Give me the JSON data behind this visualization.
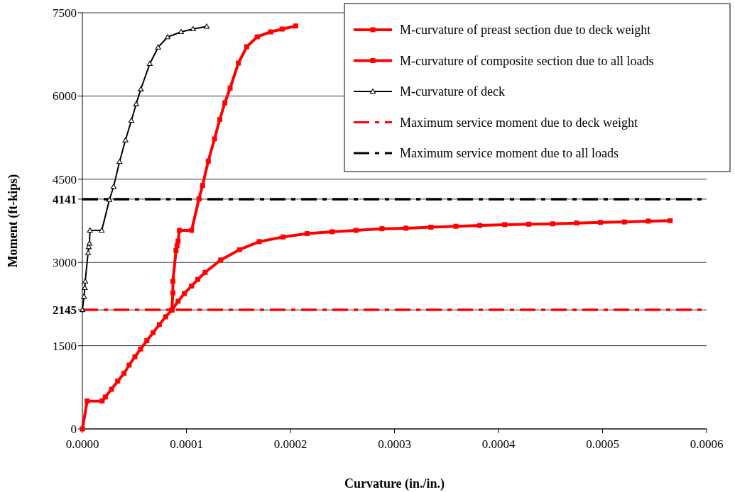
{
  "chart_data": {
    "type": "line",
    "xlabel": "Curvature (in./in.)",
    "ylabel": "Moment (ft-kips)",
    "xlim": [
      0,
      0.0006
    ],
    "ylim": [
      0,
      7500
    ],
    "xticks": [
      {
        "value": 0,
        "label": "0.0000"
      },
      {
        "value": 0.0001,
        "label": "0.0001"
      },
      {
        "value": 0.0002,
        "label": "0.0002"
      },
      {
        "value": 0.0003,
        "label": "0.0003"
      },
      {
        "value": 0.0004,
        "label": "0.0004"
      },
      {
        "value": 0.0005,
        "label": "0.0005"
      },
      {
        "value": 0.0006,
        "label": "0.0006"
      }
    ],
    "yticks": [
      0,
      1500,
      2145,
      3000,
      4141,
      4500,
      6000,
      7500
    ],
    "grid": "y",
    "legend": "top right",
    "series": [
      {
        "name": "M-curvature of preast section due to deck weight",
        "color": "#ff0000",
        "marker": "square",
        "x": [
          0,
          4.6e-06,
          1.9e-05,
          2.2e-05,
          2.8e-05,
          3.4e-05,
          4e-05,
          4.5e-05,
          5.05e-05,
          5.6e-05,
          6.2e-05,
          6.8e-05,
          7.4e-05,
          8e-05,
          8.6e-05,
          9.2e-05,
          9.8e-05,
          0.000105,
          0.000111,
          0.000118,
          0.000133,
          0.000151,
          0.00017,
          0.000193,
          0.000216,
          0.00024,
          0.000263,
          0.000288,
          0.000311,
          0.000335,
          0.000359,
          0.000382,
          0.000406,
          0.000429,
          0.000452,
          0.000475,
          0.000498,
          0.000521,
          0.000544,
          0.000565
        ],
        "values": [
          0,
          502,
          502,
          575,
          715,
          860,
          1000,
          1150,
          1300,
          1440,
          1590,
          1735,
          1880,
          2020,
          2140,
          2300,
          2440,
          2575,
          2695,
          2820,
          3045,
          3230,
          3375,
          3460,
          3519,
          3553,
          3578,
          3607,
          3617,
          3636,
          3652,
          3666,
          3681,
          3690,
          3695,
          3710,
          3721,
          3730,
          3745,
          3754
        ]
      },
      {
        "name": "M-curvature of composite section due to all loads",
        "color": "#ff0000",
        "marker": "square",
        "x": [
          8.6e-05,
          8.7e-05,
          8.7e-05,
          9e-05,
          9.1e-05,
          9.2e-05,
          9.33e-05,
          0.000105,
          0.000112,
          0.0001155,
          0.000121,
          0.000127,
          0.000132,
          0.000137,
          0.000142,
          0.00015,
          0.000158,
          0.000168,
          0.000181,
          0.000192,
          0.000205
        ],
        "values": [
          2145,
          2450,
          2660,
          3215,
          3300,
          3385,
          3578,
          3578,
          4143,
          4387,
          4826,
          5226,
          5575,
          5877,
          6142,
          6593,
          6887,
          7066,
          7155,
          7206,
          7261
        ]
      },
      {
        "name": "M-curvature of deck",
        "color": "#000000",
        "marker": "triangle",
        "x": [
          0,
          1.6e-06,
          2.3e-06,
          2.7e-06,
          5.5e-06,
          6.1e-06,
          6.8e-06,
          7.3e-06,
          1.86e-05,
          2.6e-05,
          3e-05,
          3.57e-05,
          4.14e-05,
          4.71e-05,
          5.17e-05,
          5.62e-05,
          6.48e-05,
          7.28e-05,
          8.19e-05,
          9.49e-05,
          0.0001063,
          0.0001195
        ],
        "values": [
          2145,
          2385,
          2543,
          2660,
          3172,
          3280,
          3343,
          3578,
          3578,
          4131,
          4366,
          4813,
          5204,
          5558,
          5856,
          6125,
          6580,
          6878,
          7062,
          7155,
          7206,
          7253
        ]
      }
    ],
    "ref_lines": [
      {
        "axis": "y",
        "value": 2145,
        "label": "Maximum service moment due to deck weight",
        "color": "#ff0000",
        "line_style": "dashdot"
      },
      {
        "axis": "y",
        "value": 4141,
        "label": "Maximum service moment due to all loads",
        "color": "#000000",
        "line_style": "dashdot"
      }
    ]
  }
}
